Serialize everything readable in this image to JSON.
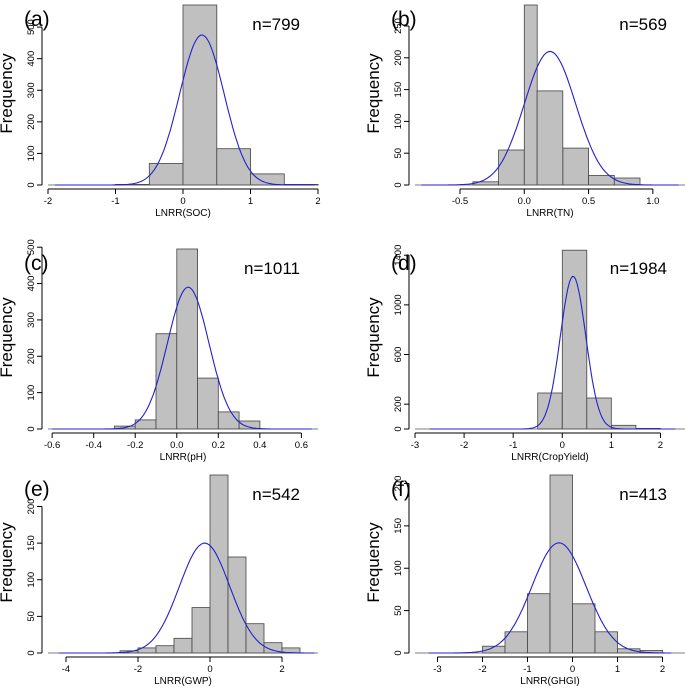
{
  "chart_data": [
    {
      "type": "bar",
      "panel_label": "(a)",
      "n_label": "n=799",
      "xlabel": "LNRR(SOC)",
      "ylabel": "Frequency",
      "xlim": [
        -2,
        2
      ],
      "ylim": [
        0,
        570
      ],
      "xticks": [
        -2,
        -1,
        0,
        1,
        2
      ],
      "yticks": [
        0,
        100,
        200,
        300,
        400,
        500
      ],
      "bins": [
        {
          "x0": -1.0,
          "x1": -0.5,
          "count": 2
        },
        {
          "x0": -0.5,
          "x1": 0.0,
          "count": 68
        },
        {
          "x0": 0.0,
          "x1": 0.5,
          "count": 570
        },
        {
          "x0": 0.5,
          "x1": 1.0,
          "count": 115
        },
        {
          "x0": 1.0,
          "x1": 1.5,
          "count": 35
        },
        {
          "x0": 1.5,
          "x1": 2.0,
          "count": 2
        }
      ],
      "curve": {
        "mean": 0.28,
        "sd": 0.33,
        "peak": 475,
        "xmin": -1.9,
        "xmax": 1.95
      }
    },
    {
      "type": "bar",
      "panel_label": "(b)",
      "n_label": "n=569",
      "xlabel": "LNRR(TN)",
      "ylabel": "Frequency",
      "xlim": [
        -0.85,
        1.25
      ],
      "ylim": [
        0,
        283
      ],
      "xticks": [
        -0.5,
        0.0,
        0.5,
        1.0
      ],
      "yticks": [
        0,
        50,
        100,
        150,
        200,
        250
      ],
      "bins": [
        {
          "x0": -0.4,
          "x1": -0.2,
          "count": 5
        },
        {
          "x0": -0.2,
          "x1": 0.0,
          "count": 55
        },
        {
          "x0": 0.0,
          "x1": 0.1,
          "count": 283
        },
        {
          "x0": 0.1,
          "x1": 0.3,
          "count": 148
        },
        {
          "x0": 0.3,
          "x1": 0.5,
          "count": 58
        },
        {
          "x0": 0.5,
          "x1": 0.7,
          "count": 15
        },
        {
          "x0": 0.7,
          "x1": 0.9,
          "count": 11
        }
      ],
      "curve": {
        "mean": 0.2,
        "sd": 0.2,
        "peak": 210,
        "xmin": -0.8,
        "xmax": 1.2
      }
    },
    {
      "type": "bar",
      "panel_label": "(c)",
      "n_label": "n=1011",
      "xlabel": "LNRR(pH)",
      "ylabel": "Frequency",
      "xlim": [
        -0.62,
        0.68
      ],
      "ylim": [
        0,
        495
      ],
      "xticks": [
        -0.6,
        -0.4,
        -0.2,
        0.0,
        0.2,
        0.4,
        0.6
      ],
      "yticks": [
        0,
        100,
        200,
        300,
        400,
        500
      ],
      "bins": [
        {
          "x0": -0.3,
          "x1": -0.2,
          "count": 8
        },
        {
          "x0": -0.2,
          "x1": -0.1,
          "count": 25
        },
        {
          "x0": -0.1,
          "x1": 0.0,
          "count": 262
        },
        {
          "x0": 0.0,
          "x1": 0.1,
          "count": 495
        },
        {
          "x0": 0.1,
          "x1": 0.2,
          "count": 140
        },
        {
          "x0": 0.2,
          "x1": 0.3,
          "count": 47
        },
        {
          "x0": 0.3,
          "x1": 0.4,
          "count": 22
        }
      ],
      "curve": {
        "mean": 0.055,
        "sd": 0.1,
        "peak": 390,
        "xmin": -0.6,
        "xmax": 0.65
      }
    },
    {
      "type": "bar",
      "panel_label": "(d)",
      "n_label": "n=1984",
      "xlabel": "LNRR(CropYield)",
      "ylabel": "Frequency",
      "xlim": [
        -3,
        2.5
      ],
      "ylim": [
        0,
        1450
      ],
      "xticks": [
        -3,
        -2,
        -1,
        0,
        1,
        2
      ],
      "yticks": [
        0,
        200,
        600,
        1000,
        1400
      ],
      "bins": [
        {
          "x0": -0.5,
          "x1": 0.0,
          "count": 290
        },
        {
          "x0": 0.0,
          "x1": 0.5,
          "count": 1440
        },
        {
          "x0": 0.5,
          "x1": 1.0,
          "count": 250
        },
        {
          "x0": 1.0,
          "x1": 1.5,
          "count": 30
        },
        {
          "x0": 1.5,
          "x1": 2.0,
          "count": 5
        }
      ],
      "curve": {
        "mean": 0.22,
        "sd": 0.26,
        "peak": 1230,
        "xmin": -2.7,
        "xmax": 2.3
      }
    },
    {
      "type": "bar",
      "panel_label": "(e)",
      "n_label": "n=542",
      "xlabel": "LNRR(GWP)",
      "ylabel": "Frequency",
      "xlim": [
        -4.5,
        3
      ],
      "ylim": [
        0,
        243
      ],
      "xticks": [
        -4,
        -2,
        0,
        2
      ],
      "yticks": [
        0,
        50,
        100,
        150,
        200
      ],
      "bins": [
        {
          "x0": -2.5,
          "x1": -2.0,
          "count": 3
        },
        {
          "x0": -2.0,
          "x1": -1.5,
          "count": 7
        },
        {
          "x0": -1.5,
          "x1": -1.0,
          "count": 10
        },
        {
          "x0": -1.0,
          "x1": -0.5,
          "count": 20
        },
        {
          "x0": -0.5,
          "x1": 0.0,
          "count": 62
        },
        {
          "x0": 0.0,
          "x1": 0.5,
          "count": 243
        },
        {
          "x0": 0.5,
          "x1": 1.0,
          "count": 131
        },
        {
          "x0": 1.0,
          "x1": 1.5,
          "count": 40
        },
        {
          "x0": 1.5,
          "x1": 2.0,
          "count": 14
        },
        {
          "x0": 2.0,
          "x1": 2.5,
          "count": 7
        }
      ],
      "curve": {
        "mean": -0.15,
        "sd": 0.7,
        "peak": 150,
        "xmin": -4.2,
        "xmax": 2.9
      }
    },
    {
      "type": "bar",
      "panel_label": "(f)",
      "n_label": "n=413",
      "xlabel": "LNRR(GHGI)",
      "ylabel": "Frequency",
      "xlim": [
        -3.5,
        2.5
      ],
      "ylim": [
        0,
        210
      ],
      "xticks": [
        -3,
        -2,
        -1,
        0,
        1,
        2
      ],
      "yticks": [
        0,
        50,
        100,
        150,
        200
      ],
      "bins": [
        {
          "x0": -2.0,
          "x1": -1.5,
          "count": 8
        },
        {
          "x0": -1.5,
          "x1": -1.0,
          "count": 25
        },
        {
          "x0": -1.0,
          "x1": -0.5,
          "count": 70
        },
        {
          "x0": -0.5,
          "x1": 0.0,
          "count": 210
        },
        {
          "x0": 0.0,
          "x1": 0.5,
          "count": 58
        },
        {
          "x0": 0.5,
          "x1": 1.0,
          "count": 25
        },
        {
          "x0": 1.0,
          "x1": 1.5,
          "count": 5
        },
        {
          "x0": 1.5,
          "x1": 2.0,
          "count": 3
        }
      ],
      "curve": {
        "mean": -0.3,
        "sd": 0.6,
        "peak": 130,
        "xmin": -3.2,
        "xmax": 2.2
      }
    }
  ],
  "colors": {
    "bar_fill": "#c0c0c0",
    "bar_stroke": "#444444",
    "curve": "#2222cc",
    "axis": "#000000"
  }
}
